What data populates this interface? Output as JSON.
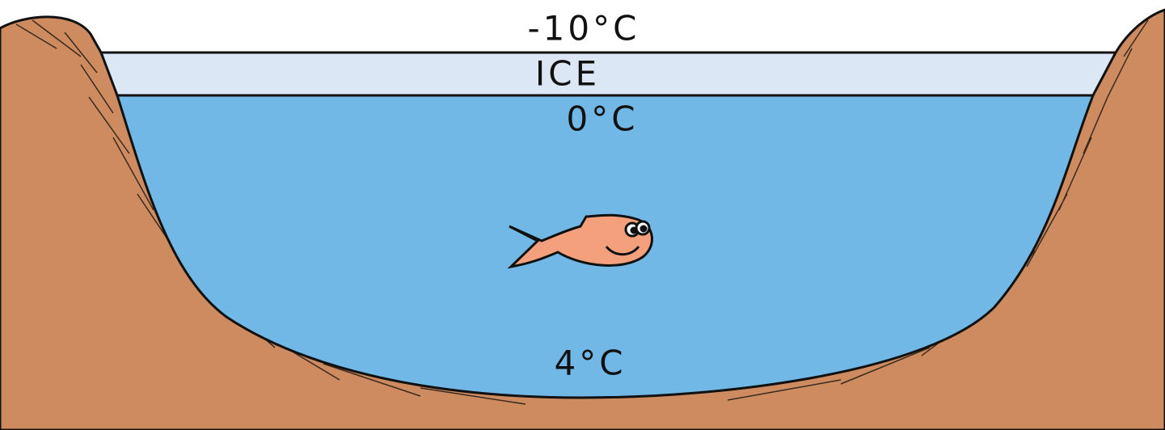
{
  "labels": {
    "air_temperature": "-10°C",
    "ice": "ICE",
    "surface_temperature": "0°C",
    "bottom_temperature": "4°C"
  }
}
